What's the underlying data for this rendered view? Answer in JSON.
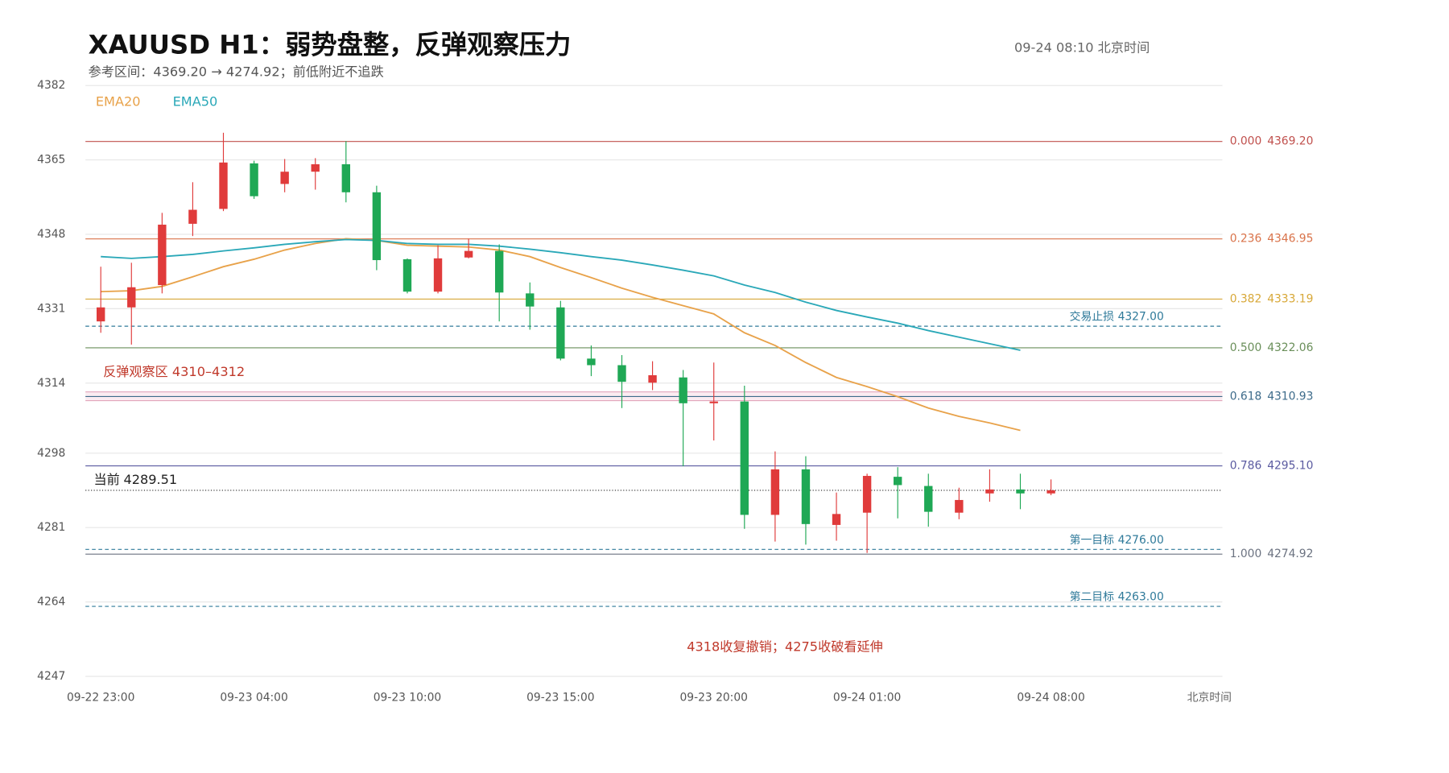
{
  "chart_data": {
    "type": "candlestick",
    "title": "XAUUSD  H1：弱势盘整，反弹观察压力",
    "subtitle": "参考区间：4369.20 → 4274.92；前低附近不追跌",
    "timestamp": "09-24  08:10 北京时间",
    "x_unit": "北京时间",
    "categories": [
      "09-22 23:00",
      null,
      null,
      null,
      null,
      "09-23 04:00",
      null,
      null,
      null,
      null,
      "09-23 10:00",
      null,
      null,
      null,
      null,
      "09-23 15:00",
      null,
      null,
      null,
      null,
      "09-23 20:00",
      null,
      null,
      null,
      null,
      "09-24 01:00",
      null,
      null,
      null,
      null,
      null,
      "09-24 08:00"
    ],
    "open": [
      4328.1,
      4331.3,
      4336.4,
      4350.4,
      4353.8,
      4364.2,
      4359.5,
      4362.3,
      4364.0,
      4357.6,
      4342.3,
      4334.9,
      4342.7,
      4344.2,
      4334.5,
      4331.3,
      4319.6,
      4318.1,
      4314.1,
      4315.3,
      4309.4,
      4309.8,
      4283.9,
      4294.3,
      4281.6,
      4284.4,
      4292.6,
      4290.5,
      4284.4,
      4288.8,
      4289.7,
      4288.8
    ],
    "high": [
      4340.6,
      4341.5,
      4352.9,
      4359.9,
      4371.2,
      4364.8,
      4365.2,
      4365.4,
      4369.3,
      4359.1,
      4342.5,
      4345.5,
      4347.0,
      4345.7,
      4337.0,
      4332.8,
      4322.6,
      4320.4,
      4319.0,
      4317.0,
      4318.7,
      4313.4,
      4298.4,
      4297.3,
      4289.0,
      4293.3,
      4294.8,
      4293.3,
      4290.1,
      4294.3,
      4293.3,
      4292.0
    ],
    "low": [
      4325.5,
      4322.8,
      4334.5,
      4347.6,
      4353.3,
      4356.1,
      4357.6,
      4358.2,
      4355.3,
      4339.8,
      4334.5,
      4334.5,
      4342.5,
      4328.1,
      4326.2,
      4319.2,
      4315.6,
      4308.3,
      4312.4,
      4295.0,
      4300.9,
      4280.7,
      4277.8,
      4277.1,
      4278.0,
      4275.2,
      4283.1,
      4281.2,
      4282.9,
      4286.9,
      4285.2,
      4288.4
    ],
    "close": [
      4331.3,
      4335.9,
      4350.2,
      4353.6,
      4364.4,
      4356.7,
      4362.3,
      4364.0,
      4357.6,
      4342.1,
      4334.9,
      4342.5,
      4344.2,
      4334.7,
      4331.5,
      4319.6,
      4318.1,
      4314.3,
      4315.8,
      4309.4,
      4309.8,
      4283.9,
      4294.3,
      4281.8,
      4284.1,
      4292.8,
      4290.7,
      4284.6,
      4287.3,
      4289.7,
      4288.8,
      4289.51
    ],
    "up_color": "#e03b3b",
    "down_color": "#1fa855",
    "series": [
      {
        "name": "EMA20",
        "color": "#e8a24a",
        "values": [
          4334.9,
          4335.1,
          4336.1,
          4338.3,
          4340.6,
          4342.3,
          4344.4,
          4345.9,
          4347.0,
          4346.6,
          4345.5,
          4345.3,
          4345.1,
          4344.4,
          4342.9,
          4340.4,
          4338.1,
          4335.7,
          4333.6,
          4331.7,
          4329.8,
          4325.5,
          4322.6,
          4318.7,
          4315.3,
          4313.2,
          4310.9,
          4308.3,
          4306.4,
          4304.9,
          4303.2,
          null
        ]
      },
      {
        "name": "EMA50",
        "color": "#2aa8b8",
        "values": [
          4342.9,
          4342.5,
          4342.9,
          4343.4,
          4344.2,
          4344.9,
          4345.7,
          4346.3,
          4346.8,
          4346.6,
          4345.9,
          4345.7,
          4345.7,
          4345.3,
          4344.6,
          4343.8,
          4342.9,
          4342.1,
          4341.0,
          4339.8,
          4338.5,
          4336.4,
          4334.7,
          4332.5,
          4330.6,
          4329.1,
          4327.7,
          4326.0,
          4324.5,
          4323.0,
          4321.5,
          null
        ]
      }
    ],
    "ylim": [
      4247,
      4382
    ],
    "yticks": [
      4247,
      4264,
      4281,
      4298,
      4314,
      4331,
      4348,
      4365,
      4382
    ],
    "grid": true,
    "legend": "top-left",
    "fib_levels": [
      {
        "ratio": "0.000",
        "value": 4369.2,
        "value_label": "4369.20",
        "color": "#c0504d"
      },
      {
        "ratio": "0.236",
        "value": 4346.95,
        "value_label": "4346.95",
        "color": "#d9734a"
      },
      {
        "ratio": "0.382",
        "value": 4333.19,
        "value_label": "4333.19",
        "color": "#d8a838"
      },
      {
        "ratio": "0.500",
        "value": 4322.06,
        "value_label": "4322.06",
        "color": "#6a8f5a"
      },
      {
        "ratio": "0.618",
        "value": 4310.93,
        "value_label": "4310.93",
        "color": "#3d6b8a"
      },
      {
        "ratio": "0.786",
        "value": 4295.1,
        "value_label": "4295.10",
        "color": "#5a5aa0"
      },
      {
        "ratio": "1.000",
        "value": 4274.92,
        "value_label": "4274.92",
        "color": "#6b7280"
      }
    ],
    "trade_levels": [
      {
        "label": "交易止损",
        "value": 4327,
        "value_label": "4327.00",
        "color": "#2f7a9a"
      },
      {
        "label": "第一目标",
        "value": 4276,
        "value_label": "4276.00",
        "color": "#2f7a9a"
      },
      {
        "label": "第二目标",
        "value": 4263,
        "value_label": "4263.00",
        "color": "#2f7a9a"
      }
    ],
    "current": {
      "label": "当前",
      "value": 4289.51,
      "color": "#222222"
    },
    "zone": {
      "label": "反弹观察区  4310–4312",
      "range": [
        4310,
        4312
      ],
      "color": "#c0392b"
    },
    "note": {
      "text": "4318收复撤销；4275收破看延伸",
      "color": "#c0392b"
    }
  }
}
